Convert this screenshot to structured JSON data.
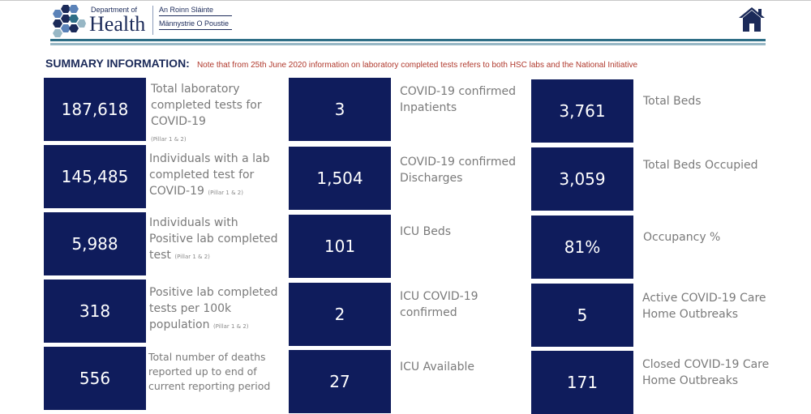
{
  "header": {
    "dept_of": "Department of",
    "dept_name": "Health",
    "irish_name": "An Roinn Sláinte",
    "manx_name": "Männystrie O Poustie",
    "home_icon": "home-icon",
    "brand_color": "#1b2a59",
    "rule_colors": [
      "#2e6e86",
      "#97b7c5"
    ]
  },
  "summary": {
    "title": "SUMMARY INFORMATION:",
    "note": "Note that from 25th June 2020 information on laboratory completed tests refers to both HSC labs and the National Initiative"
  },
  "kpi_box_color": "#0f1c5c",
  "kpis": [
    {
      "value": "187,618",
      "label": "Total laboratory completed tests for COVID-19",
      "sub": "(Pillar 1 & 2)"
    },
    {
      "value": "145,485",
      "label": "Individuals with a lab completed test for COVID-19",
      "sub": "(Pillar 1 & 2)"
    },
    {
      "value": "5,988",
      "label": "Individuals with Positive lab completed test",
      "sub": "(Pillar 1 & 2)"
    },
    {
      "value": "318",
      "label": "Positive lab completed tests per 100k population",
      "sub": "(Pillar 1 & 2)"
    },
    {
      "value": "556",
      "label": "Total number of deaths reported up to end of current reporting period",
      "sub": ""
    },
    {
      "value": "3",
      "label": "COVID-19 confirmed Inpatients",
      "sub": ""
    },
    {
      "value": "1,504",
      "label": "COVID-19 confirmed Discharges",
      "sub": ""
    },
    {
      "value": "101",
      "label": "ICU Beds",
      "sub": ""
    },
    {
      "value": "2",
      "label": "ICU COVID-19 confirmed",
      "sub": ""
    },
    {
      "value": "27",
      "label": "ICU Available",
      "sub": ""
    },
    {
      "value": "3,761",
      "label": "Total Beds",
      "sub": ""
    },
    {
      "value": "3,059",
      "label": "Total Beds Occupied",
      "sub": ""
    },
    {
      "value": "81%",
      "label": "Occupancy %",
      "sub": ""
    },
    {
      "value": "5",
      "label": "Active COVID-19 Care Home Outbreaks",
      "sub": ""
    },
    {
      "value": "171",
      "label": "Closed COVID-19 Care Home Outbreaks",
      "sub": ""
    }
  ]
}
